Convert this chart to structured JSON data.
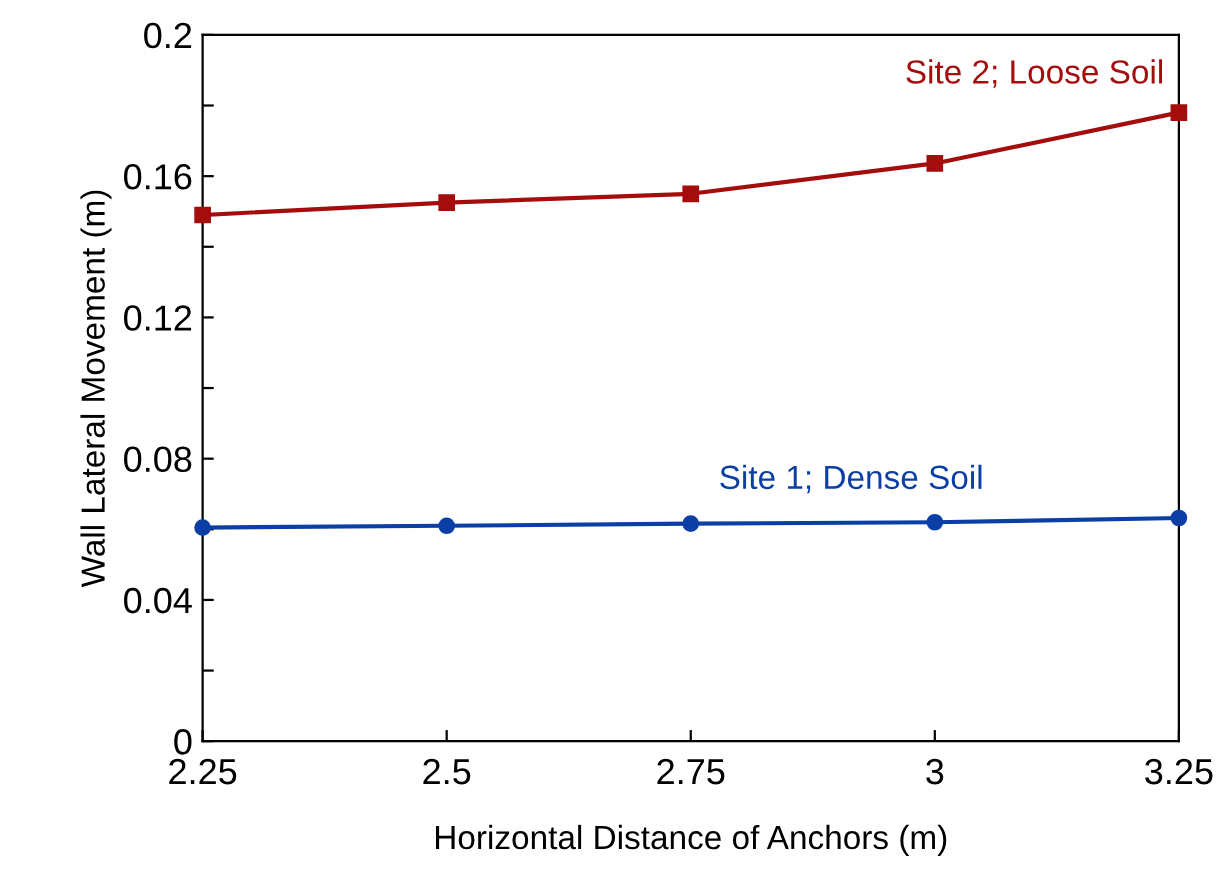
{
  "chart_data": {
    "type": "line",
    "xlabel": "Horizontal Distance of Anchors (m)",
    "ylabel": "Wall Lateral Movement (m)",
    "x": [
      2.25,
      2.5,
      2.75,
      3,
      3.25
    ],
    "series": [
      {
        "name": "Site 1; Dense Soil",
        "color": "#0b3fa6",
        "marker": "circle",
        "values": [
          0.0605,
          0.061,
          0.0616,
          0.062,
          0.0632
        ]
      },
      {
        "name": "Site 2; Loose Soil",
        "color": "#a50d0d",
        "marker": "square",
        "values": [
          0.149,
          0.1525,
          0.155,
          0.1636,
          0.178
        ]
      }
    ],
    "xlim": [
      2.25,
      3.25
    ],
    "xticks": [
      2.25,
      2.5,
      2.75,
      3,
      3.25
    ],
    "ylim": [
      0,
      0.2
    ],
    "yticks": [
      0,
      {
        "value": 0.02,
        "label": null
      },
      0.04,
      {
        "value": 0.06,
        "label": null
      },
      0.08,
      {
        "value": 0.1,
        "label": null
      },
      0.12,
      {
        "value": 0.14,
        "label": null
      },
      0.16,
      {
        "value": 0.18,
        "label": null
      },
      0.2
    ],
    "grid": false,
    "legend": false,
    "line_style": "solid"
  }
}
